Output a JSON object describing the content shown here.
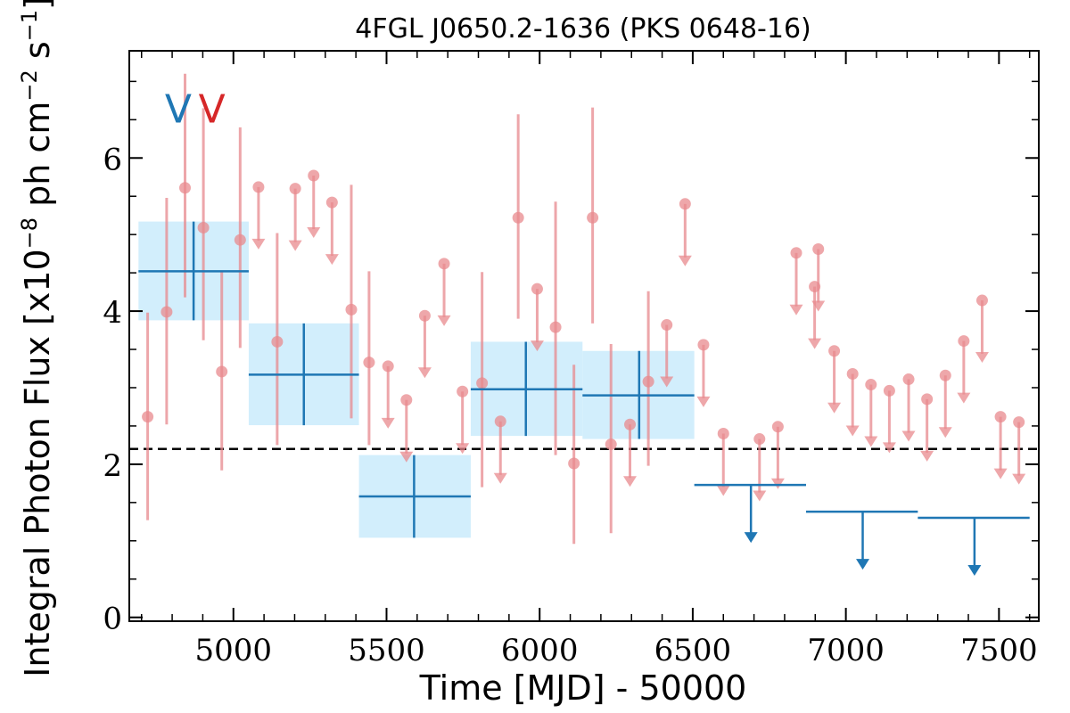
{
  "chart_data": {
    "type": "scatter",
    "title": "4FGL J0650.2-1636 (PKS 0648-16)",
    "xlabel": "Time [MJD] - 50000",
    "ylabel": "Integral Photon Flux [x10",
    "ylabel_exp1": "−8",
    "ylabel_mid": " ph cm",
    "ylabel_exp2": "−2",
    "ylabel_s": " s",
    "ylabel_exp3": "−1",
    "ylabel_end": "]",
    "xlim": [
      4660,
      7630
    ],
    "ylim": [
      -0.05,
      7.4
    ],
    "xticks": [
      5000,
      5500,
      6000,
      6500,
      7000,
      7500
    ],
    "yticks": [
      0,
      2,
      4,
      6
    ],
    "reference_line": {
      "y": 2.2,
      "style": "dashed",
      "color": "#000000"
    },
    "colors": {
      "monthly": "#e8898e",
      "binned": "#1f77b4",
      "binned_fill": "#d2eefc",
      "marker_blue": "#1f77b4",
      "marker_red": "#d62728"
    },
    "markers": [
      {
        "label": "V",
        "x": 4820,
        "y": 6.65,
        "color": "#1f77b4"
      },
      {
        "label": "V",
        "x": 4930,
        "y": 6.65,
        "color": "#d62728"
      }
    ],
    "monthly_points": [
      {
        "x": 4720,
        "y": 2.62,
        "lo": 1.27,
        "hi": 3.98
      },
      {
        "x": 4782,
        "y": 3.99,
        "lo": 2.52,
        "hi": 5.48
      },
      {
        "x": 4842,
        "y": 5.61,
        "lo": 4.18,
        "hi": 7.1
      },
      {
        "x": 4902,
        "y": 5.09,
        "lo": 3.62,
        "hi": 6.65
      },
      {
        "x": 4962,
        "y": 3.21,
        "lo": 1.92,
        "hi": 4.52
      },
      {
        "x": 5022,
        "y": 4.93,
        "lo": 3.52,
        "hi": 6.4
      },
      {
        "x": 5143,
        "y": 3.6,
        "lo": 2.25,
        "hi": 5.02
      },
      {
        "x": 5385,
        "y": 4.02,
        "lo": 2.6,
        "hi": 5.65
      },
      {
        "x": 5443,
        "y": 3.33,
        "lo": 2.25,
        "hi": 4.52
      },
      {
        "x": 5812,
        "y": 3.06,
        "lo": 1.7,
        "hi": 4.51
      },
      {
        "x": 5930,
        "y": 5.22,
        "lo": 3.9,
        "hi": 6.57
      },
      {
        "x": 6052,
        "y": 3.79,
        "lo": 2.12,
        "hi": 5.43
      },
      {
        "x": 6112,
        "y": 2.01,
        "lo": 0.96,
        "hi": 3.3
      },
      {
        "x": 6173,
        "y": 5.22,
        "lo": 3.84,
        "hi": 6.66
      },
      {
        "x": 6233,
        "y": 2.26,
        "lo": 1.1,
        "hi": 3.57
      },
      {
        "x": 6355,
        "y": 3.08,
        "lo": 1.98,
        "hi": 4.26
      }
    ],
    "monthly_upper_limits": [
      {
        "x": 5082,
        "y": 5.62
      },
      {
        "x": 5202,
        "y": 5.6
      },
      {
        "x": 5262,
        "y": 5.77
      },
      {
        "x": 5322,
        "y": 5.42
      },
      {
        "x": 5505,
        "y": 3.28
      },
      {
        "x": 5565,
        "y": 2.84
      },
      {
        "x": 5625,
        "y": 3.94
      },
      {
        "x": 5688,
        "y": 4.62
      },
      {
        "x": 5748,
        "y": 2.95
      },
      {
        "x": 5872,
        "y": 2.56
      },
      {
        "x": 5992,
        "y": 4.29
      },
      {
        "x": 6295,
        "y": 2.52
      },
      {
        "x": 6415,
        "y": 3.82
      },
      {
        "x": 6475,
        "y": 5.4
      },
      {
        "x": 6535,
        "y": 3.56
      },
      {
        "x": 6600,
        "y": 2.4
      },
      {
        "x": 6718,
        "y": 2.33
      },
      {
        "x": 6778,
        "y": 2.49
      },
      {
        "x": 6838,
        "y": 4.76
      },
      {
        "x": 6898,
        "y": 4.32
      },
      {
        "x": 6910,
        "y": 4.81
      },
      {
        "x": 6962,
        "y": 3.48
      },
      {
        "x": 7022,
        "y": 3.18
      },
      {
        "x": 7082,
        "y": 3.04
      },
      {
        "x": 7142,
        "y": 2.96
      },
      {
        "x": 7205,
        "y": 3.11
      },
      {
        "x": 7265,
        "y": 2.85
      },
      {
        "x": 7325,
        "y": 3.16
      },
      {
        "x": 7385,
        "y": 3.61
      },
      {
        "x": 7445,
        "y": 4.14
      },
      {
        "x": 7505,
        "y": 2.62
      },
      {
        "x": 7565,
        "y": 2.55
      }
    ],
    "binned_points": [
      {
        "x": 4870,
        "xlo": 4690,
        "xhi": 5050,
        "y": 4.52,
        "lo": 3.88,
        "hi": 5.17
      },
      {
        "x": 5230,
        "xlo": 5050,
        "xhi": 5410,
        "y": 3.17,
        "lo": 2.51,
        "hi": 3.84
      },
      {
        "x": 5590,
        "xlo": 5410,
        "xhi": 5775,
        "y": 1.58,
        "lo": 1.04,
        "hi": 2.12
      },
      {
        "x": 5955,
        "xlo": 5775,
        "xhi": 6140,
        "y": 2.98,
        "lo": 2.37,
        "hi": 3.6
      },
      {
        "x": 6325,
        "xlo": 6140,
        "xhi": 6505,
        "y": 2.9,
        "lo": 2.33,
        "hi": 3.48
      }
    ],
    "binned_upper_limits": [
      {
        "x": 6690,
        "xlo": 6505,
        "xhi": 6870,
        "y": 1.73
      },
      {
        "x": 7055,
        "xlo": 6870,
        "xhi": 7235,
        "y": 1.38
      },
      {
        "x": 7420,
        "xlo": 7235,
        "xhi": 7600,
        "y": 1.3
      }
    ]
  }
}
